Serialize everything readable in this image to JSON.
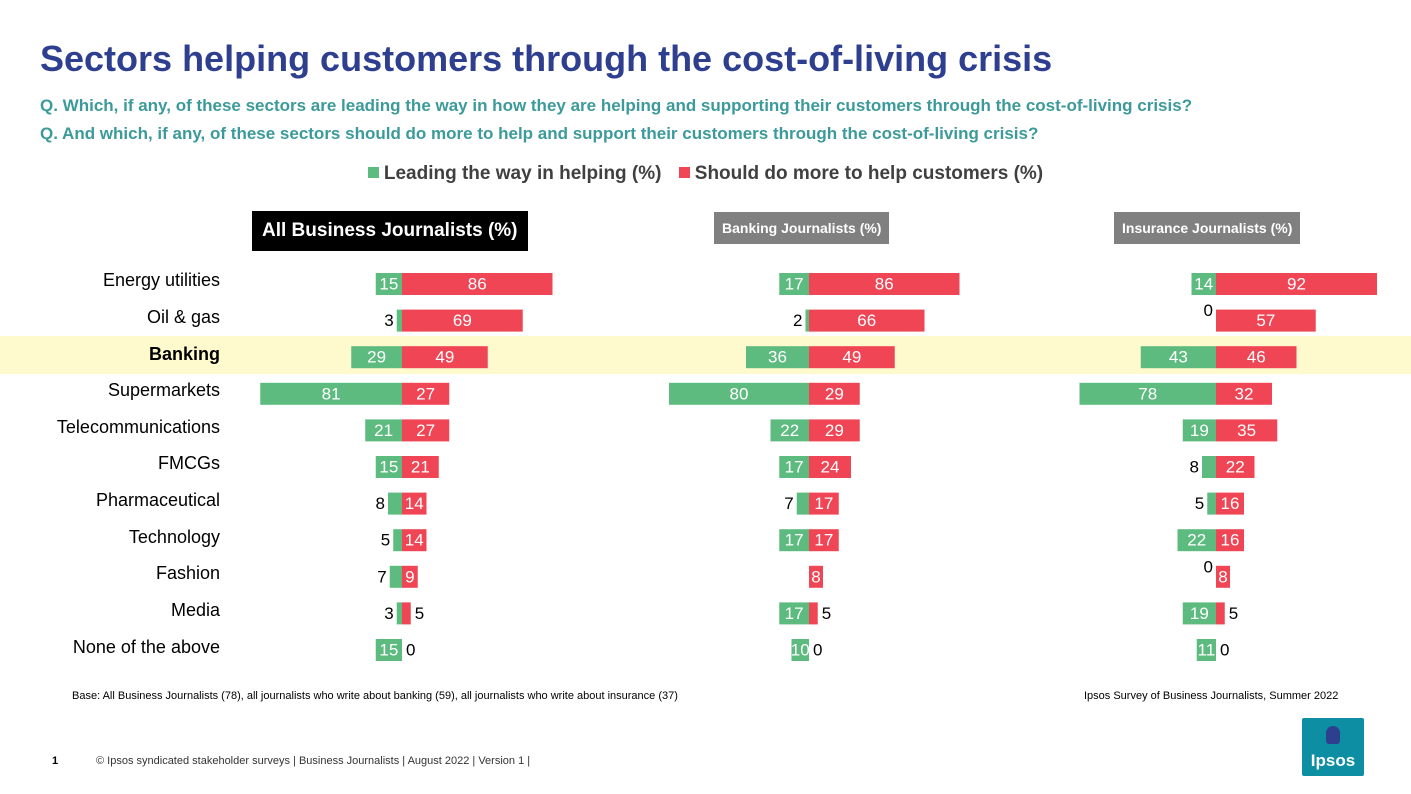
{
  "title": "Sectors helping customers through the cost-of-living crisis",
  "questions": [
    "Q. Which, if any, of these sectors are leading the way in how they are helping and supporting their customers through the cost-of-living crisis?",
    "Q. And which, if any, of these sectors should do more to help and support their customers through the cost-of-living crisis?"
  ],
  "legend": {
    "leading": "Leading the way in helping (%)",
    "should": "Should do more to help customers (%)"
  },
  "colors": {
    "green": "#5ebb80",
    "red": "#ef4554",
    "highlight": "#fffacd",
    "title": "#2e3f8f",
    "question": "#3c9a9a"
  },
  "panels": {
    "all": "All Business Journalists (%)",
    "banking": "Banking Journalists (%)",
    "insurance": "Insurance Journalists (%)"
  },
  "chart_data": {
    "type": "bar",
    "orientation": "horizontal-diverging",
    "categories": [
      "Energy utilities",
      "Oil & gas",
      "Banking",
      "Supermarkets",
      "Telecommunications",
      "FMCGs",
      "Pharmaceutical",
      "Technology",
      "Fashion",
      "Media",
      "None of the above"
    ],
    "highlighted_category": "Banking",
    "groups": [
      {
        "name": "All Business Journalists (%)",
        "series": [
          {
            "name": "Leading the way in helping (%)",
            "values": [
              15,
              3,
              29,
              81,
              21,
              15,
              8,
              5,
              7,
              3,
              15
            ]
          },
          {
            "name": "Should do more to help customers (%)",
            "values": [
              86,
              69,
              49,
              27,
              27,
              21,
              14,
              14,
              9,
              5,
              0
            ]
          }
        ]
      },
      {
        "name": "Banking Journalists (%)",
        "series": [
          {
            "name": "Leading the way in helping (%)",
            "values": [
              17,
              2,
              36,
              80,
              22,
              17,
              7,
              17,
              null,
              17,
              10
            ]
          },
          {
            "name": "Should do more to help customers (%)",
            "values": [
              86,
              66,
              49,
              29,
              29,
              24,
              17,
              17,
              8,
              5,
              0
            ]
          }
        ]
      },
      {
        "name": "Insurance Journalists (%)",
        "series": [
          {
            "name": "Leading the way in helping (%)",
            "values": [
              14,
              0,
              43,
              78,
              19,
              8,
              5,
              22,
              0,
              19,
              11
            ]
          },
          {
            "name": "Should do more to help customers (%)",
            "values": [
              92,
              57,
              46,
              32,
              35,
              22,
              16,
              16,
              8,
              5,
              0
            ]
          }
        ]
      }
    ]
  },
  "base_note": "Base: All Business Journalists (78), all journalists who write about banking (59), all journalists who write about insurance (37)",
  "source": "Ipsos Survey of Business Journalists, Summer 2022",
  "page_number": "1",
  "footer": "© Ipsos syndicated stakeholder surveys | Business Journalists | August 2022 | Version 1 |",
  "logo": "Ipsos"
}
